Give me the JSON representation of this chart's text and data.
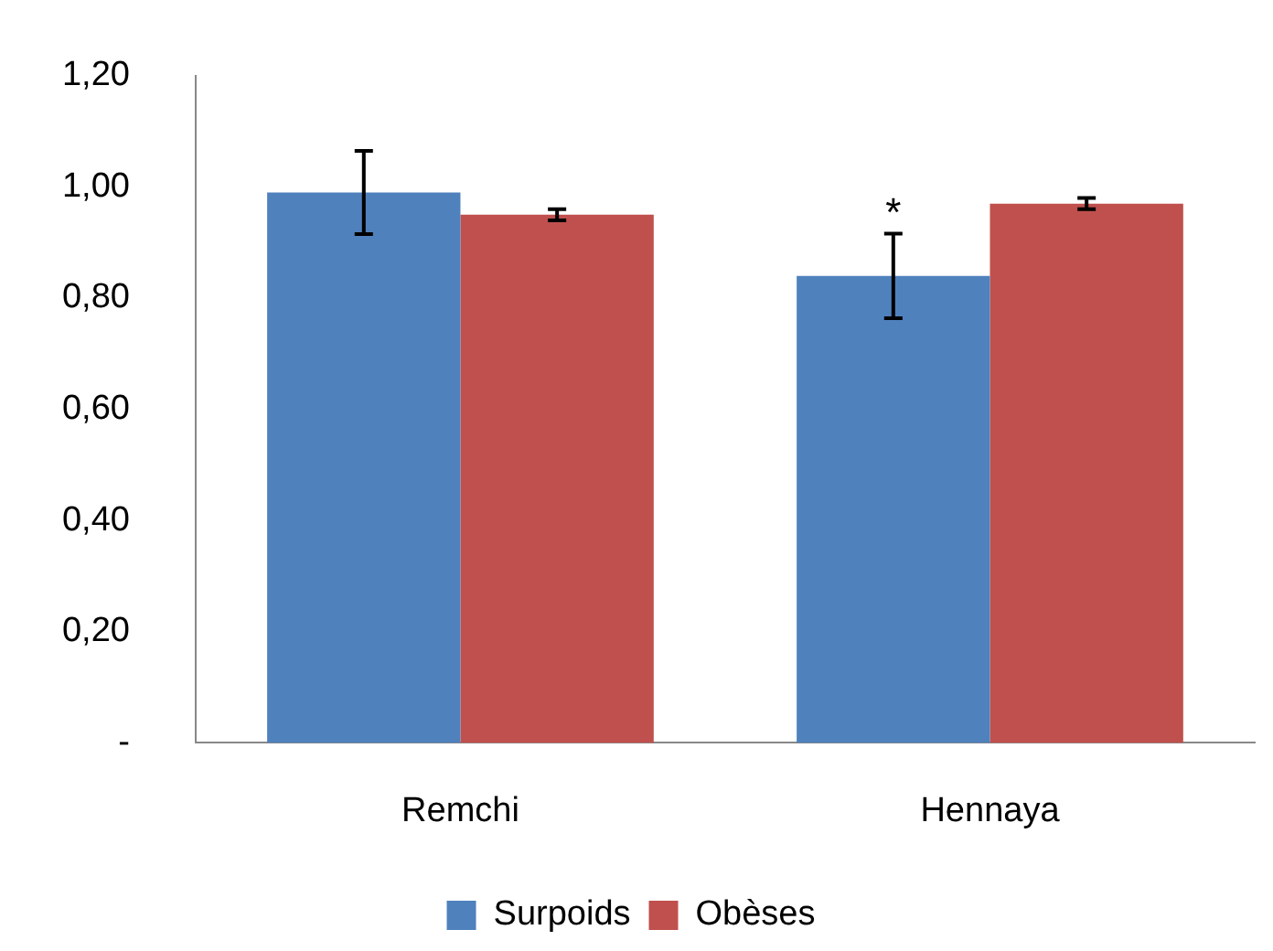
{
  "chart_data": {
    "type": "bar",
    "categories": [
      "Remchi",
      "Hennaya"
    ],
    "series": [
      {
        "name": "Surpoids",
        "color": "#4f81bd",
        "values": [
          0.99,
          0.84
        ],
        "errors": [
          0.075,
          0.076
        ]
      },
      {
        "name": "Obèses",
        "color": "#c0504d",
        "values": [
          0.95,
          0.97
        ],
        "errors": [
          0.01,
          0.01
        ]
      }
    ],
    "ylim": [
      0,
      1.2
    ],
    "yticks": [
      {
        "value": 0,
        "label": "-"
      },
      {
        "value": 0.2,
        "label": "0,20"
      },
      {
        "value": 0.4,
        "label": "0,40"
      },
      {
        "value": 0.6,
        "label": "0,60"
      },
      {
        "value": 0.8,
        "label": "0,80"
      },
      {
        "value": 1.0,
        "label": "1,00"
      },
      {
        "value": 1.2,
        "label": "1,20"
      }
    ],
    "grid": false,
    "legend": "bottom",
    "annotations": [
      {
        "text": "*",
        "x": "Hennaya",
        "y": 0.95
      }
    ]
  }
}
